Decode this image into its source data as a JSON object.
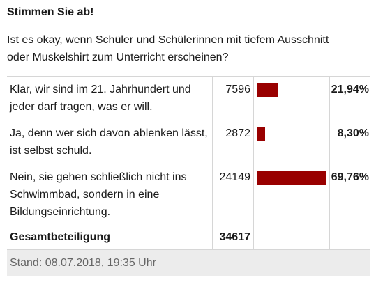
{
  "poll": {
    "heading": "Stimmen Sie ab!",
    "question_line1": "Ist es okay, wenn Schüler und Schülerinnen mit tiefem Ausschnitt",
    "question_line2": "oder Muskelshirt zum Unterricht erscheinen?",
    "bar_color": "#990000",
    "answers": [
      {
        "text": "Klar, wir sind im 21. Jahrhundert und jeder darf tragen, was er will.",
        "votes": "7596",
        "percent": "21,94%",
        "share": 0.2194
      },
      {
        "text": "Ja, denn wer sich davon ablenken lässt, ist selbst schuld.",
        "votes": "2872",
        "percent": "8,30%",
        "share": 0.083
      },
      {
        "text": "Nein, sie gehen schließlich nicht ins Schwimmbad, sondern in eine Bildungseinrichtung.",
        "votes": "24149",
        "percent": "69,76%",
        "share": 0.6976
      }
    ],
    "total_label": "Gesamtbeteiligung",
    "total_votes": "34617",
    "stand": "Stand: 08.07.2018, 19:35 Uhr"
  }
}
